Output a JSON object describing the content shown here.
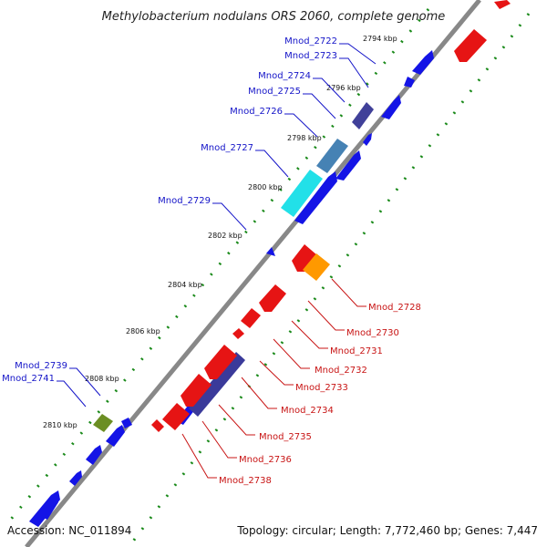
{
  "title": "Methylobacterium nodulans ORS 2060, complete genome",
  "footer": {
    "accession": "Accession: NC_011894",
    "summary": "Topology: circular; Length: 7,772,460 bp; Genes: 7,447"
  },
  "colors": {
    "backbone": "#808080",
    "forward": "#1414e6",
    "reverse": "#e61414",
    "dots": "#1a8a1a",
    "label_forward": "#1414c8",
    "label_reverse": "#c81414"
  },
  "ticks": [
    "2794 kbp",
    "2796 kbp",
    "2798 kbp",
    "2800 kbp",
    "2802 kbp",
    "2804 kbp",
    "2806 kbp",
    "2808 kbp",
    "2810 kbp"
  ],
  "genes_forward": [
    "Mnod_2722",
    "Mnod_2723",
    "Mnod_2724",
    "Mnod_2725",
    "Mnod_2726",
    "Mnod_2727",
    "Mnod_2729",
    "Mnod_2739",
    "Mnod_2741"
  ],
  "genes_reverse": [
    "Mnod_2728",
    "Mnod_2730",
    "Mnod_2731",
    "Mnod_2732",
    "Mnod_2733",
    "Mnod_2734",
    "Mnod_2735",
    "Mnod_2736",
    "Mnod_2738"
  ]
}
